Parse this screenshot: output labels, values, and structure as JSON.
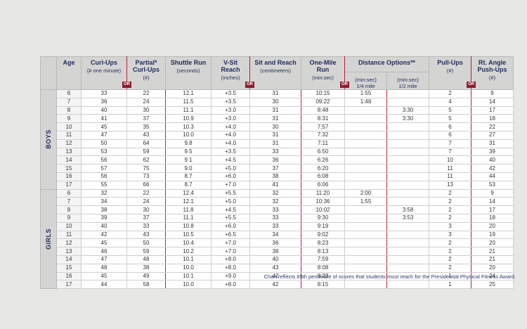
{
  "columns": [
    {
      "title": "Age"
    },
    {
      "title": "Curl-Ups",
      "subtitle": "(# one minute)"
    },
    {
      "title": "Partial* Curl-Ups",
      "subtitle": "(#)"
    },
    {
      "title": "Shuttle Run",
      "subtitle": "(seconds)"
    },
    {
      "title": "V-Sit Reach",
      "subtitle": "(inches)"
    },
    {
      "title": "Sit and Reach",
      "subtitle": "(centimeters)"
    },
    {
      "title": "One-Mile Run",
      "subtitle": "(min:sec)"
    },
    {
      "title": "Distance Options**",
      "subcolumns": [
        "(min:sec) 1/4 mile",
        "(min:sec) 1/2 mile"
      ]
    },
    {
      "title": "Pull-Ups",
      "subtitle": "(#)"
    },
    {
      "title": "Rt. Angle Push-Ups",
      "subtitle": "(#)"
    }
  ],
  "or_badges": [
    "OR",
    "OR",
    "OR",
    "OR"
  ],
  "groups": [
    {
      "label": "BOYS",
      "rows": [
        [
          "6",
          "33",
          "22",
          "12.1",
          "+3.5",
          "31",
          "10:15",
          "1:55",
          null,
          "2",
          "9"
        ],
        [
          "7",
          "36",
          "24",
          "11.5",
          "+3.5",
          "30",
          "09:22",
          "1:48",
          null,
          "4",
          "14"
        ],
        [
          "8",
          "40",
          "30",
          "11.1",
          "+3.0",
          "31",
          "8:48",
          null,
          "3:30",
          "5",
          "17"
        ],
        [
          "9",
          "41",
          "37",
          "10.9",
          "+3.0",
          "31",
          "8:31",
          null,
          "3:30",
          "5",
          "18"
        ],
        [
          "10",
          "45",
          "35",
          "10.3",
          "+4.0",
          "30",
          "7:57",
          null,
          null,
          "6",
          "22"
        ],
        [
          "11",
          "47",
          "43",
          "10.0",
          "+4.0",
          "31",
          "7:32",
          null,
          null,
          "6",
          "27"
        ],
        [
          "12",
          "50",
          "64",
          "9.8",
          "+4.0",
          "31",
          "7:11",
          null,
          null,
          "7",
          "31"
        ],
        [
          "13",
          "53",
          "59",
          "9.5",
          "+3.5",
          "33",
          "6:50",
          null,
          null,
          "7",
          "39"
        ],
        [
          "14",
          "56",
          "62",
          "9.1",
          "+4.5",
          "36",
          "6:26",
          null,
          null,
          "10",
          "40"
        ],
        [
          "15",
          "57",
          "75",
          "9.0",
          "+5.0",
          "37",
          "6:20",
          null,
          null,
          "11",
          "42"
        ],
        [
          "16",
          "56",
          "73",
          "8.7",
          "+6.0",
          "38",
          "6:08",
          null,
          null,
          "11",
          "44"
        ],
        [
          "17",
          "55",
          "66",
          "8.7",
          "+7.0",
          "41",
          "6:06",
          null,
          null,
          "13",
          "53"
        ]
      ]
    },
    {
      "label": "GIRLS",
      "rows": [
        [
          "6",
          "32",
          "22",
          "12.4",
          "+5.5",
          "32",
          "11:20",
          "2:00",
          null,
          "2",
          "9"
        ],
        [
          "7",
          "34",
          "24",
          "12.1",
          "+5.0",
          "32",
          "10:36",
          "1:55",
          null,
          "2",
          "14"
        ],
        [
          "8",
          "38",
          "30",
          "11.8",
          "+4.5",
          "33",
          "10:02",
          null,
          "3:58",
          "2",
          "17"
        ],
        [
          "9",
          "39",
          "37",
          "11.1",
          "+5.5",
          "33",
          "9:30",
          null,
          "3:53",
          "2",
          "18"
        ],
        [
          "10",
          "40",
          "33",
          "10.8",
          "+6.0",
          "33",
          "9:19",
          null,
          null,
          "3",
          "20"
        ],
        [
          "11",
          "42",
          "43",
          "10.5",
          "+6.5",
          "34",
          "9:02",
          null,
          null,
          "3",
          "19"
        ],
        [
          "12",
          "45",
          "50",
          "10.4",
          "+7.0",
          "36",
          "8:23",
          null,
          null,
          "2",
          "20"
        ],
        [
          "13",
          "46",
          "59",
          "10.2",
          "+7.0",
          "38",
          "8:13",
          null,
          null,
          "2",
          "21"
        ],
        [
          "14",
          "47",
          "48",
          "10.1",
          "+8.0",
          "40",
          "7:59",
          null,
          null,
          "2",
          "21"
        ],
        [
          "15",
          "48",
          "38",
          "10.0",
          "+8.0",
          "43",
          "8:08",
          null,
          null,
          "2",
          "20"
        ],
        [
          "16",
          "45",
          "49",
          "10.1",
          "+9.0",
          "42",
          "8:23",
          null,
          null,
          "1",
          "24"
        ],
        [
          "17",
          "44",
          "58",
          "10.0",
          "+8.0",
          "42",
          "8:15",
          null,
          null,
          "1",
          "25"
        ]
      ]
    }
  ],
  "footnote": "Chart reflects 85th percentile of scores that students must reach for the Presidential Physical Fitness Award."
}
